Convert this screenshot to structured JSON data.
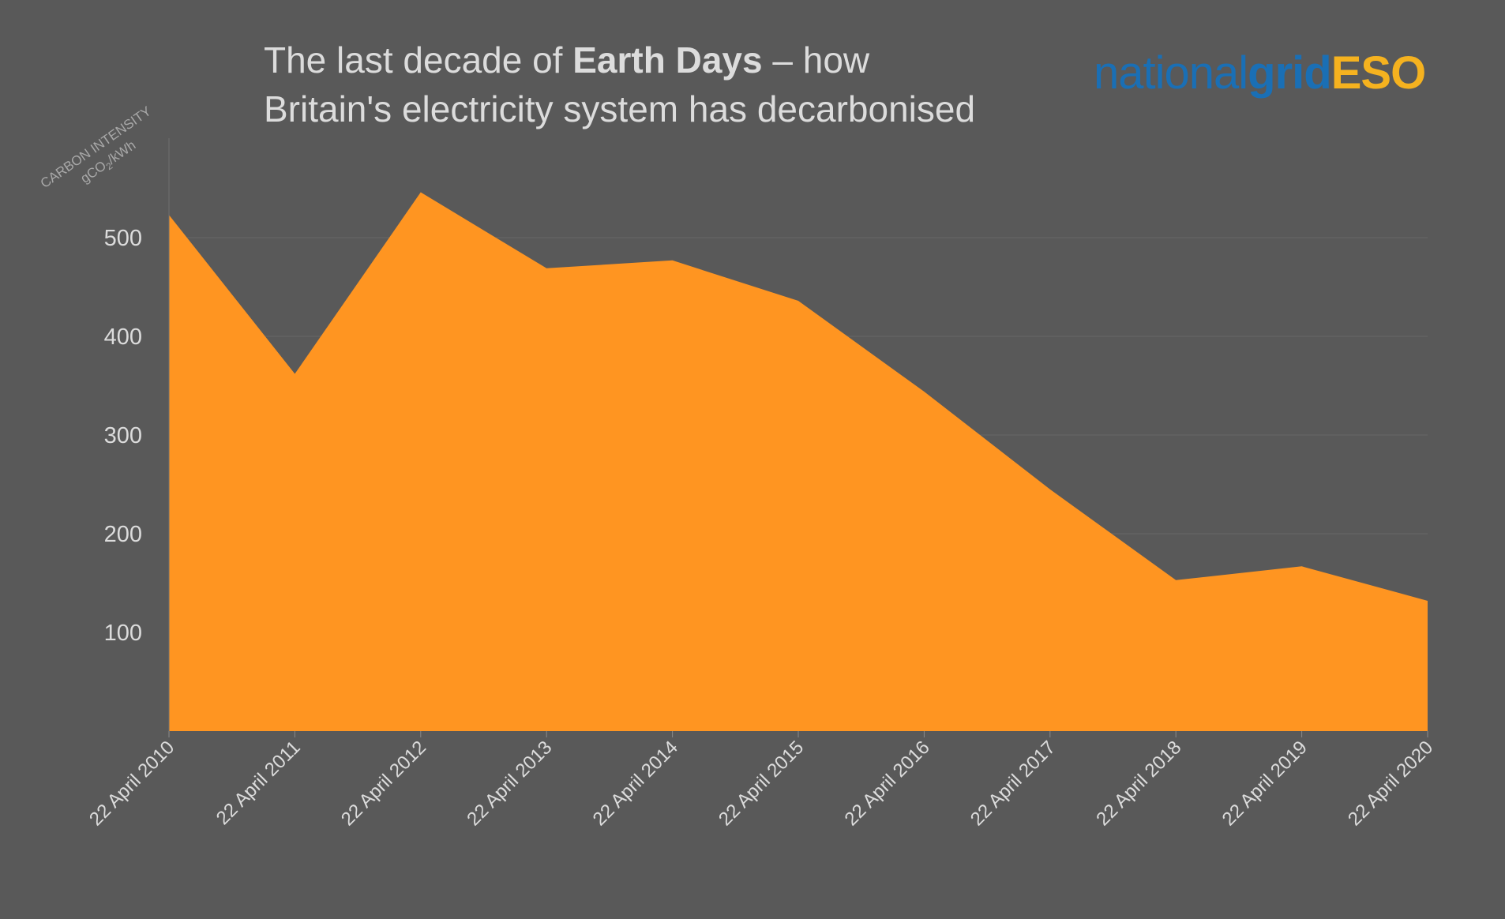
{
  "title": {
    "prefix": "The last decade of ",
    "bold": "Earth Days",
    "suffix": " – how",
    "line2": "Britain's electricity system has decarbonised"
  },
  "logo": {
    "part1": "national",
    "part2": "grid",
    "part3": "ESO"
  },
  "colors": {
    "background": "#595959",
    "area": "#ff9521",
    "text": "#dcdcdc",
    "gridline": "#676767",
    "logo_blue": "#1a6fb5",
    "logo_yellow": "#f5b21f"
  },
  "chart_data": {
    "type": "area",
    "ylabel_line1": "CARBON INTENSITY",
    "ylabel_line2_main": "gCO",
    "ylabel_line2_sub": "2",
    "ylabel_line2_rest": "/kWh",
    "categories": [
      "22 April 2010",
      "22 April 2011",
      "22 April 2012",
      "22 April 2013",
      "22 April 2014",
      "22 April 2015",
      "22 April 2016",
      "22 April 2017",
      "22 April 2018",
      "22 April 2019",
      "22 April 2020"
    ],
    "values": [
      523,
      362,
      546,
      469,
      477,
      436,
      344,
      245,
      153,
      167,
      132
    ],
    "yticks": [
      100,
      200,
      300,
      400,
      500
    ],
    "ylim": [
      0,
      600
    ],
    "grid": true
  }
}
